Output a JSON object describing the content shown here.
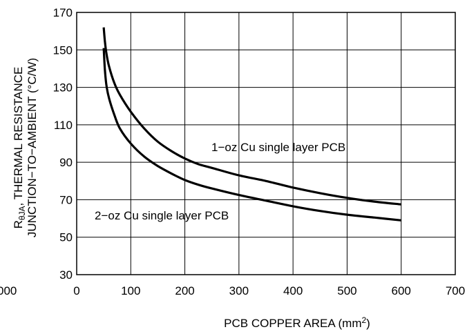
{
  "chart_data": {
    "type": "line",
    "xlabel": "PCB COPPER AREA (mm",
    "xlabel_sup": "2",
    "xlabel_end": ")",
    "ylabel_line1_prefix": "R",
    "ylabel_line1_sub": "θJA",
    "ylabel_line1_rest": ", THERMAL RESISTANCE",
    "ylabel_line2": "JUNCTION−TO−AMBIENT (°C/W)",
    "xlim": [
      0,
      700
    ],
    "ylim": [
      30,
      170
    ],
    "x_ticks": [
      0,
      100,
      200,
      300,
      400,
      500,
      600,
      700
    ],
    "x_tick_labels": [
      "0",
      "100",
      "200",
      "300",
      "400",
      "500",
      "600",
      "700"
    ],
    "x_left_cut_label": "000",
    "y_ticks": [
      30,
      50,
      70,
      90,
      110,
      130,
      150,
      170
    ],
    "y_tick_labels": [
      "30",
      "50",
      "70",
      "90",
      "110",
      "130",
      "150",
      "170"
    ],
    "grid": true,
    "series": [
      {
        "name": "1−oz Cu single layer PCB",
        "x": [
          50,
          52,
          55,
          60,
          70,
          80,
          100,
          125,
          150,
          175,
          200,
          225,
          250,
          300,
          350,
          400,
          450,
          500,
          550,
          600
        ],
        "y": [
          162,
          155,
          148,
          141,
          132,
          126,
          117,
          108,
          101,
          96,
          92,
          89,
          87,
          83,
          80,
          76.5,
          73.5,
          71,
          69,
          67.5
        ]
      },
      {
        "name": "2−oz Cu single layer PCB",
        "x": [
          50,
          52,
          55,
          60,
          70,
          80,
          100,
          125,
          150,
          175,
          200,
          225,
          250,
          300,
          350,
          400,
          450,
          500,
          550,
          600
        ],
        "y": [
          151,
          140,
          131,
          124,
          115,
          108,
          100,
          93,
          88,
          84,
          80.5,
          78,
          76,
          72.5,
          69.5,
          66.5,
          64,
          62,
          60.5,
          59
        ]
      }
    ],
    "annotations": {
      "one_oz": "1−oz Cu single layer PCB",
      "two_oz": "2−oz Cu single layer PCB"
    }
  }
}
